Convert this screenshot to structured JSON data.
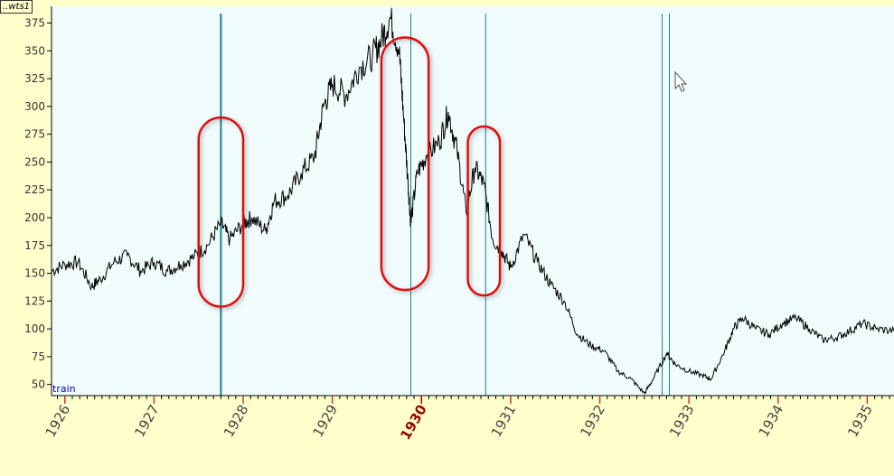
{
  "window_tag": "..wts1",
  "series_label": "train",
  "colors": {
    "background": "#ffffcc",
    "plot_bg": "#f0fcfc",
    "line": "#000000",
    "marker_line": "#1a7f8a",
    "circle": "#e01010",
    "tick_text": "#333333",
    "highlight_tick": "#990000"
  },
  "chart_data": {
    "type": "line",
    "title": "",
    "xlabel": "",
    "ylabel": "",
    "xlim": [
      1925.85,
      1935.3
    ],
    "ylim": [
      40,
      390
    ],
    "y_ticks": [
      50,
      75,
      100,
      125,
      150,
      175,
      200,
      225,
      250,
      275,
      300,
      325,
      350,
      375
    ],
    "x_ticks": [
      {
        "value": 1926,
        "label": "1926"
      },
      {
        "value": 1927,
        "label": "1927"
      },
      {
        "value": 1928,
        "label": "1928"
      },
      {
        "value": 1929,
        "label": "1929"
      },
      {
        "value": 1930,
        "label": "1930",
        "highlight": true
      },
      {
        "value": 1931,
        "label": "1931"
      },
      {
        "value": 1932,
        "label": "1932"
      },
      {
        "value": 1933,
        "label": "1933"
      },
      {
        "value": 1934,
        "label": "1934"
      },
      {
        "value": 1935,
        "label": "1935"
      }
    ],
    "series": [
      {
        "x": [
          1925.85,
          1926.0,
          1926.15,
          1926.3,
          1926.4,
          1926.55,
          1926.7,
          1926.85,
          1927.0,
          1927.15,
          1927.3,
          1927.45,
          1927.6,
          1927.75,
          1927.85,
          1928.0,
          1928.1,
          1928.25,
          1928.35,
          1928.5,
          1928.65,
          1928.8,
          1928.9,
          1929.0,
          1929.15,
          1929.3,
          1929.45,
          1929.55,
          1929.65,
          1929.75,
          1929.8,
          1929.85,
          1929.88,
          1929.95,
          1930.05,
          1930.2,
          1930.3,
          1930.4,
          1930.5,
          1930.6,
          1930.7,
          1930.8,
          1930.9,
          1931.0,
          1931.15,
          1931.3,
          1931.45,
          1931.6,
          1931.75,
          1931.9,
          1932.05,
          1932.2,
          1932.35,
          1932.5,
          1932.6,
          1932.75,
          1932.85,
          1933.0,
          1933.15,
          1933.25,
          1933.4,
          1933.5,
          1933.6,
          1933.75,
          1933.9,
          1934.05,
          1934.2,
          1934.35,
          1934.5,
          1934.65,
          1934.8,
          1934.95,
          1935.1,
          1935.3
        ],
        "y": [
          152,
          158,
          160,
          138,
          145,
          160,
          166,
          152,
          160,
          152,
          158,
          165,
          175,
          195,
          180,
          195,
          200,
          188,
          215,
          220,
          240,
          255,
          300,
          320,
          310,
          335,
          345,
          360,
          380,
          350,
          290,
          230,
          195,
          240,
          255,
          268,
          295,
          260,
          205,
          245,
          230,
          180,
          170,
          155,
          185,
          160,
          140,
          125,
          95,
          85,
          80,
          62,
          55,
          42,
          55,
          78,
          68,
          62,
          58,
          55,
          80,
          100,
          110,
          100,
          95,
          105,
          110,
          100,
          90,
          92,
          98,
          105,
          100,
          98
        ]
      }
    ],
    "markers": [
      {
        "x": 1927.75,
        "weight": "thick"
      },
      {
        "x": 1929.88,
        "weight": "thin"
      },
      {
        "x": 1930.72,
        "weight": "thin"
      },
      {
        "x": 1932.7,
        "weight": "thin"
      },
      {
        "x": 1932.78,
        "weight": "thin"
      }
    ],
    "circles": [
      {
        "x_min": 1927.5,
        "x_max": 1928.0,
        "y_min": 120,
        "y_max": 290
      },
      {
        "x_min": 1929.55,
        "x_max": 1930.08,
        "y_min": 135,
        "y_max": 362
      },
      {
        "x_min": 1930.52,
        "x_max": 1930.88,
        "y_min": 130,
        "y_max": 282
      }
    ]
  }
}
